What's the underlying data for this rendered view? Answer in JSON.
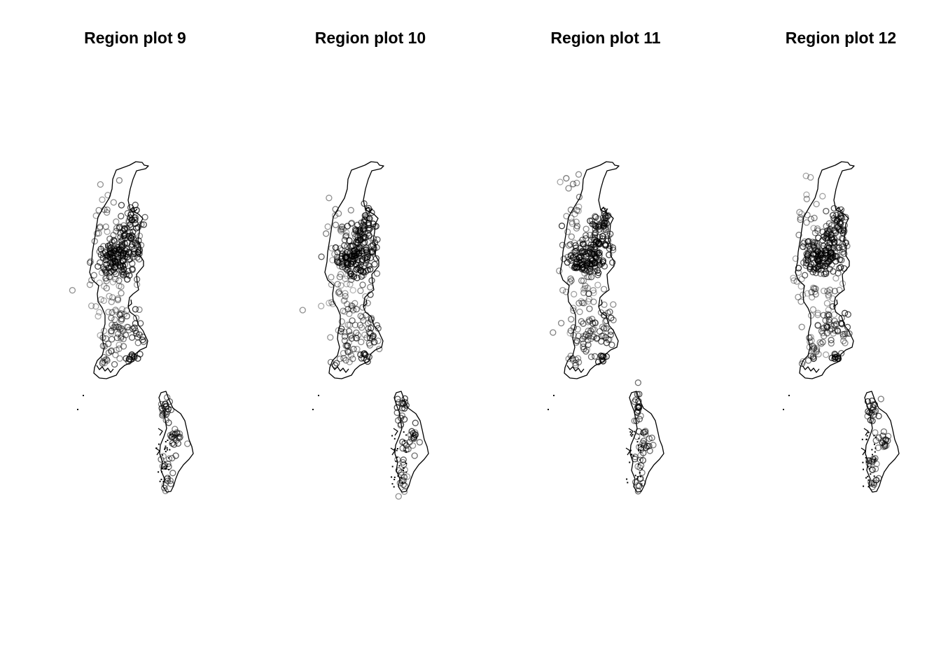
{
  "panels": [
    {
      "title": "Region plot  9",
      "seed": 9
    },
    {
      "title": "Region plot  10",
      "seed": 10
    },
    {
      "title": "Region plot  11",
      "seed": 11
    },
    {
      "title": "Region plot  12",
      "seed": 12
    }
  ],
  "colors": {
    "background": "#ffffff",
    "outline": "#000000",
    "points": "#000000"
  },
  "point_symbol": "open-circle"
}
